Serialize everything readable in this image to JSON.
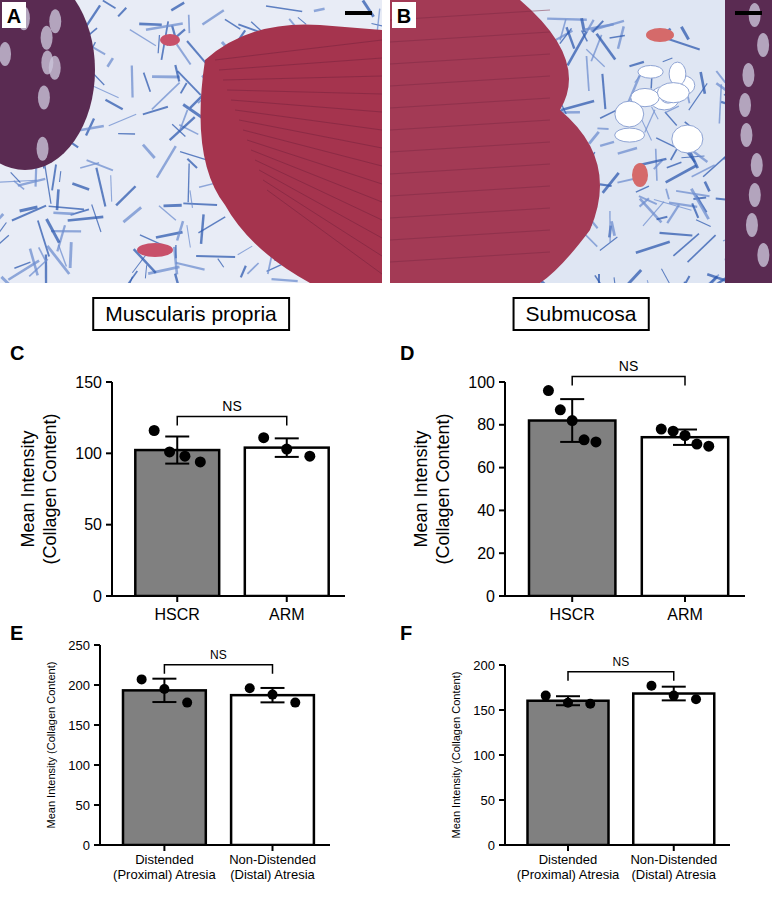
{
  "images": [
    {
      "letter": "A",
      "caption": "Muscularis propria"
    },
    {
      "letter": "B",
      "caption": "Submucosa"
    }
  ],
  "chart_data": [
    {
      "panel": "C",
      "type": "bar",
      "categories": [
        "HSCR",
        "ARM"
      ],
      "values": [
        102.3,
        104
      ],
      "errors": [
        9.5,
        6.5
      ],
      "points": [
        [
          116,
          101,
          98,
          94
        ],
        [
          111,
          103,
          98
        ]
      ],
      "colors": [
        "#808080",
        "#ffffff"
      ],
      "ylabel": "Mean Intensity (Collagen Content)",
      "ylim": [
        0,
        150
      ],
      "yticks": [
        0,
        50,
        100,
        150
      ],
      "annotation": "NS"
    },
    {
      "panel": "D",
      "type": "bar",
      "categories": [
        "HSCR",
        "ARM"
      ],
      "values": [
        82,
        74.2
      ],
      "errors": [
        10,
        3.6
      ],
      "points": [
        [
          96,
          87,
          82,
          73,
          72
        ],
        [
          78,
          77,
          75,
          71,
          70
        ]
      ],
      "colors": [
        "#808080",
        "#ffffff"
      ],
      "ylabel": "Mean Intensity (Collagen Content)",
      "ylim": [
        0,
        100
      ],
      "yticks": [
        0,
        20,
        40,
        60,
        80,
        100
      ],
      "annotation": "NS"
    },
    {
      "panel": "E",
      "type": "bar",
      "categories": [
        "Distended (Proximal) Atresia",
        "Non-Distended (Distal) Atresia"
      ],
      "values": [
        193.3,
        187.3
      ],
      "errors": [
        14.6,
        9
      ],
      "points": [
        [
          207,
          195,
          178
        ],
        [
          196,
          188,
          178
        ]
      ],
      "colors": [
        "#808080",
        "#ffffff"
      ],
      "ylabel": "Mean Intensity (Collagen Content)",
      "ylim": [
        0,
        250
      ],
      "yticks": [
        0,
        50,
        100,
        150,
        200,
        250
      ],
      "annotation": "NS"
    },
    {
      "panel": "F",
      "type": "bar",
      "categories": [
        "Distended (Proximal) Atresia",
        "Non-Distended (Distal) Atresia"
      ],
      "values": [
        160.3,
        168.3
      ],
      "errors": [
        5,
        7.6
      ],
      "points": [
        [
          166,
          158,
          157
        ],
        [
          177,
          166,
          162
        ]
      ],
      "colors": [
        "#808080",
        "#ffffff"
      ],
      "ylabel": "Mean Intensity (Collagen Content)",
      "ylim": [
        0,
        200
      ],
      "yticks": [
        0,
        50,
        100,
        150,
        200
      ],
      "annotation": "NS"
    }
  ]
}
